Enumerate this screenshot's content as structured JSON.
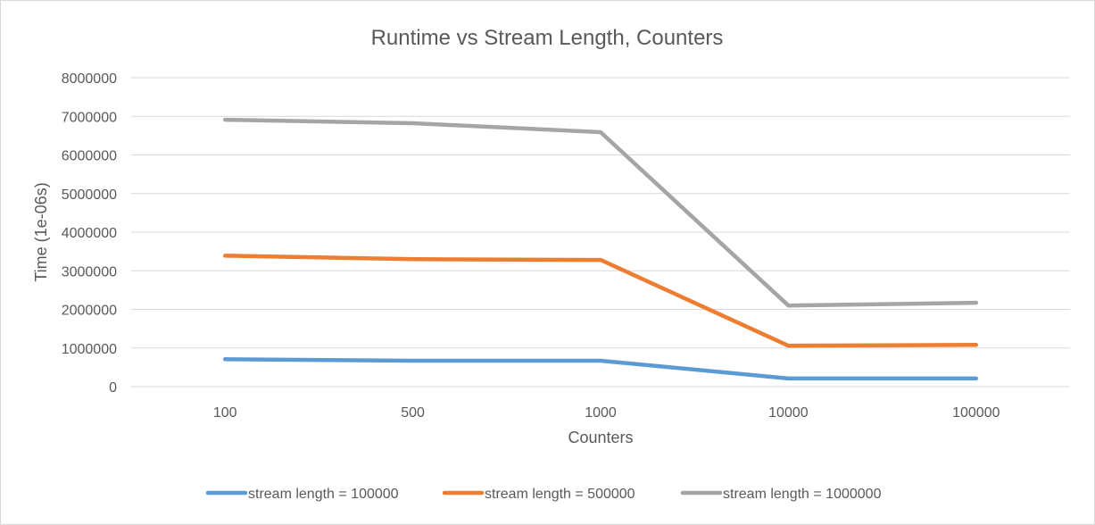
{
  "chart_data": {
    "type": "line",
    "title": "Runtime vs Stream Length, Counters",
    "xlabel": "Counters",
    "ylabel": "Time (1e-06s)",
    "categories": [
      "100",
      "500",
      "1000",
      "10000",
      "100000"
    ],
    "ylim": [
      0,
      8000000
    ],
    "yticks": [
      "0",
      "1000000",
      "2000000",
      "3000000",
      "4000000",
      "5000000",
      "6000000",
      "7000000",
      "8000000"
    ],
    "grid": true,
    "legend_position": "bottom",
    "series": [
      {
        "name": "stream length = 100000",
        "color": "#5b9bd5",
        "values": [
          710000,
          670000,
          670000,
          210000,
          210000
        ]
      },
      {
        "name": "stream length = 500000",
        "color": "#ed7d31",
        "values": [
          3390000,
          3300000,
          3280000,
          1060000,
          1080000
        ]
      },
      {
        "name": "stream length = 1000000",
        "color": "#a5a5a5",
        "values": [
          6910000,
          6820000,
          6590000,
          2100000,
          2170000
        ]
      }
    ]
  }
}
